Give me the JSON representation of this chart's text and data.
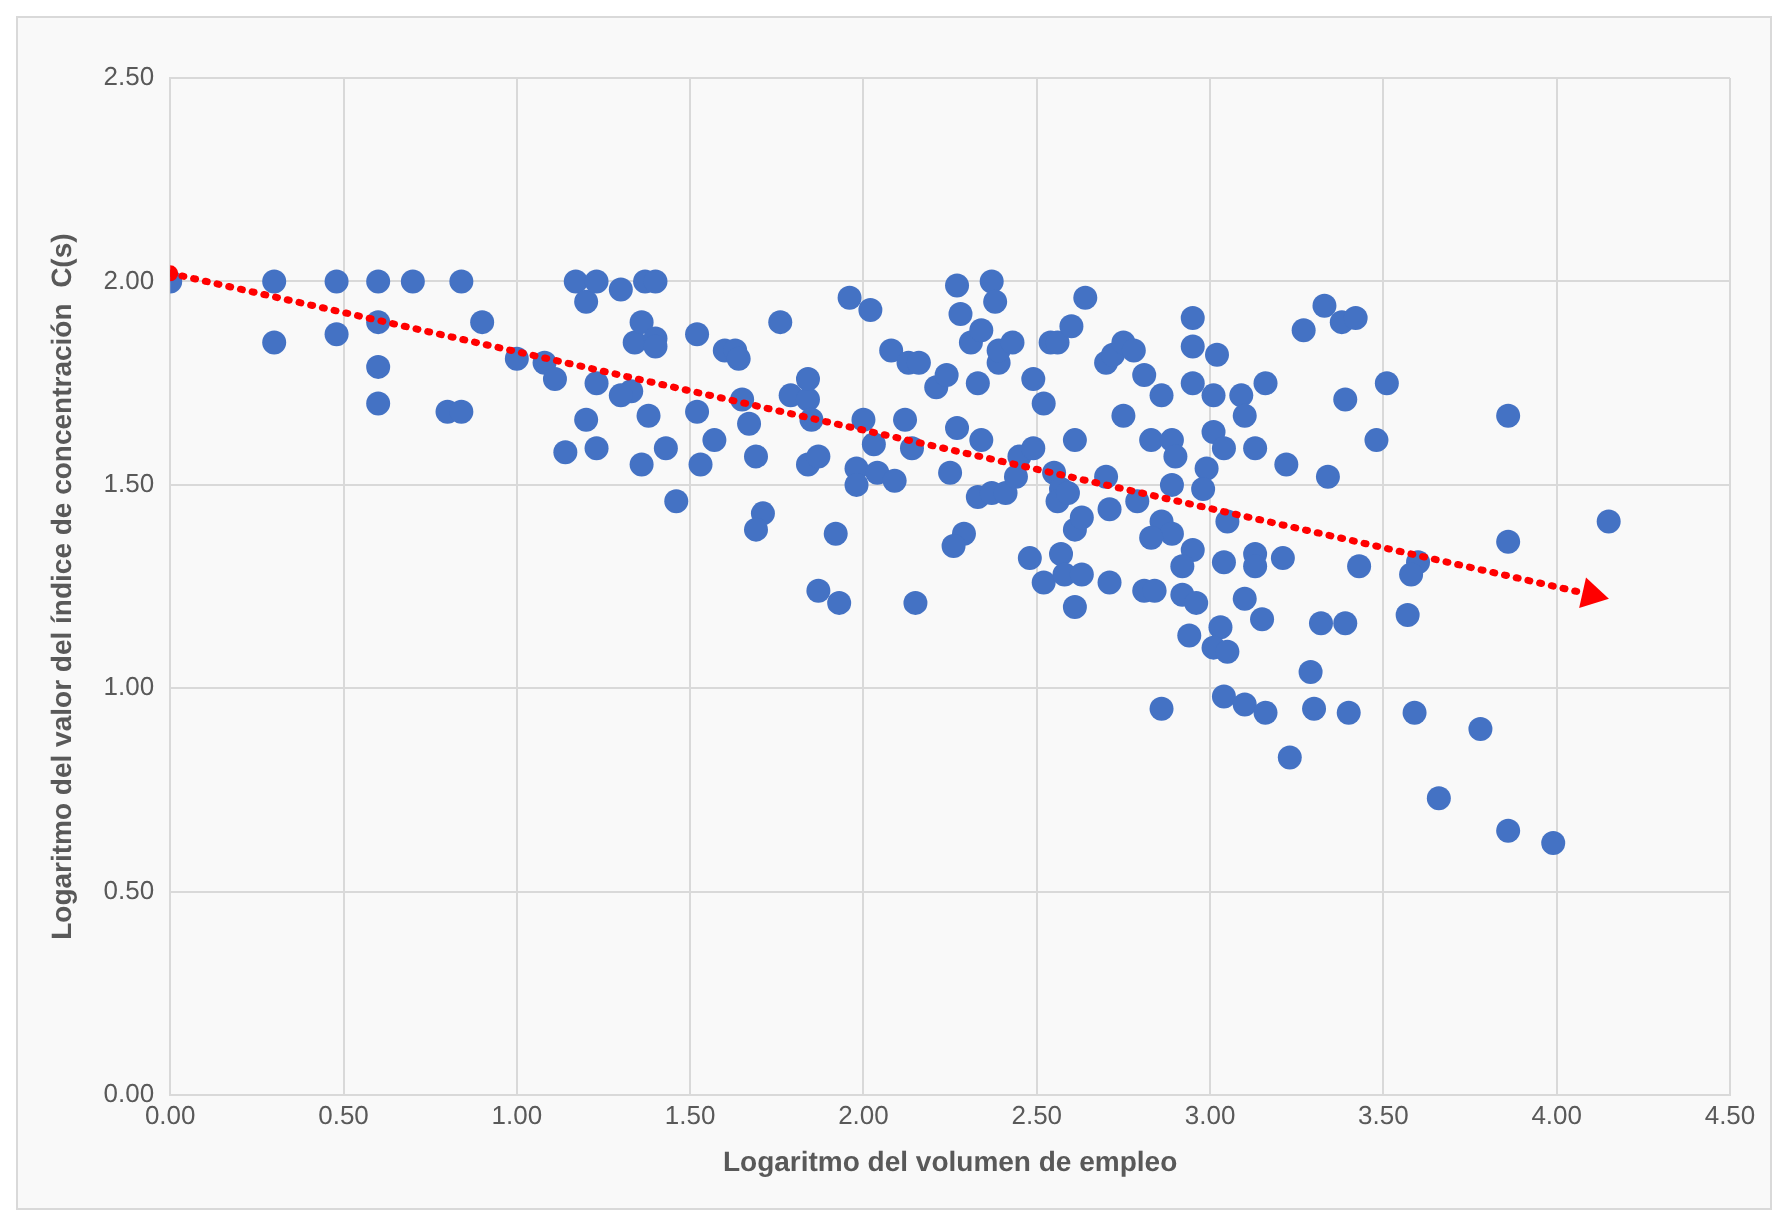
{
  "chart_data": {
    "type": "scatter",
    "xlabel": "Logaritmo del volumen de empleo",
    "ylabel": "Logaritmo del valor del índice de concentración  C(s)",
    "xlim": [
      0,
      4.5
    ],
    "xticks": [
      {
        "value": 0,
        "label": "0.00"
      },
      {
        "value": 0.5,
        "label": "0.50"
      },
      {
        "value": 1,
        "label": "1.00"
      },
      {
        "value": 1.5,
        "label": "1.50"
      },
      {
        "value": 2,
        "label": "2.00"
      },
      {
        "value": 2.5,
        "label": "2.50"
      },
      {
        "value": 3,
        "label": "3.00"
      },
      {
        "value": 3.5,
        "label": "3.50"
      },
      {
        "value": 4,
        "label": "4.00"
      },
      {
        "value": 4.5,
        "label": "4.50"
      }
    ],
    "ylim": [
      0,
      2.5
    ],
    "yticks": [
      {
        "value": 0,
        "label": "0.00"
      },
      {
        "value": 0.5,
        "label": "0.50"
      },
      {
        "value": 1,
        "label": "1.00"
      },
      {
        "value": 1.5,
        "label": "1.50"
      },
      {
        "value": 2,
        "label": "2.00"
      },
      {
        "value": 2.5,
        "label": "2.50"
      }
    ],
    "grid": true,
    "legend": false,
    "marker": "circle",
    "series": [
      {
        "color": "#4472c4",
        "x": [
          0,
          0.3,
          0.3,
          0.48,
          0.48,
          0.6,
          0.6,
          0.6,
          0.6,
          0.7,
          0.8,
          0.84,
          0.84,
          0.9,
          1.0,
          1.08,
          1.11,
          1.14,
          1.17,
          1.2,
          1.23,
          1.2,
          1.23,
          1.23,
          1.3,
          1.33,
          1.3,
          1.34,
          1.36,
          1.37,
          1.4,
          1.36,
          1.38,
          1.4,
          1.4,
          1.43,
          1.46,
          1.52,
          1.52,
          1.53,
          1.57,
          1.6,
          1.63,
          1.64,
          1.65,
          1.67,
          1.69,
          1.71,
          1.69,
          1.76,
          1.79,
          1.84,
          1.84,
          1.85,
          1.84,
          1.87,
          1.87,
          1.92,
          1.93,
          1.96,
          1.98,
          1.98,
          2.0,
          2.02,
          2.03,
          2.04,
          2.08,
          2.09,
          2.13,
          2.16,
          2.12,
          2.14,
          2.15,
          2.21,
          2.24,
          2.27,
          2.28,
          2.27,
          2.25,
          2.29,
          2.26,
          2.31,
          2.34,
          2.33,
          2.34,
          2.33,
          2.37,
          2.38,
          2.39,
          2.39,
          2.43,
          2.37,
          2.41,
          2.44,
          2.45,
          2.49,
          2.48,
          2.49,
          2.52,
          2.52,
          2.54,
          2.56,
          2.55,
          2.57,
          2.56,
          2.57,
          2.58,
          2.64,
          2.6,
          2.61,
          2.61,
          2.61,
          2.59,
          2.63,
          2.63,
          2.7,
          2.72,
          2.7,
          2.71,
          2.71,
          2.75,
          2.78,
          2.75,
          2.79,
          2.81,
          2.81,
          2.95,
          2.95,
          3.02,
          2.95,
          2.86,
          3.01,
          3.09,
          3.1,
          3.16,
          3.27,
          3.33,
          3.38,
          3.42,
          3.39,
          3.51,
          3.86,
          2.83,
          2.89,
          2.9,
          3.01,
          3.04,
          3.13,
          3.22,
          3.34,
          3.48,
          2.89,
          2.99,
          2.98,
          2.86,
          2.89,
          2.83,
          3.05,
          2.95,
          3.04,
          3.13,
          3.13,
          3.21,
          3.43,
          3.6,
          3.58,
          3.86,
          4.15,
          2.92,
          2.84,
          2.92,
          2.96,
          3.1,
          3.15,
          3.32,
          3.39,
          3.57,
          2.86,
          2.94,
          3.03,
          3.01,
          3.05,
          3.29,
          3.04,
          3.1,
          3.16,
          3.23,
          3.3,
          3.4,
          3.59,
          3.78,
          3.66,
          3.86,
          3.99
        ],
        "values": [
          2.0,
          2.0,
          1.85,
          2.0,
          1.87,
          2.0,
          1.9,
          1.79,
          1.7,
          2.0,
          1.68,
          2.0,
          1.68,
          1.9,
          1.81,
          1.8,
          1.76,
          1.58,
          2.0,
          1.95,
          2.0,
          1.66,
          1.75,
          1.59,
          1.98,
          1.73,
          1.72,
          1.85,
          1.9,
          2.0,
          2.0,
          1.55,
          1.67,
          1.86,
          1.84,
          1.59,
          1.46,
          1.87,
          1.68,
          1.55,
          1.61,
          1.83,
          1.83,
          1.81,
          1.71,
          1.65,
          1.57,
          1.43,
          1.39,
          1.9,
          1.72,
          1.71,
          1.76,
          1.66,
          1.55,
          1.57,
          1.24,
          1.38,
          1.21,
          1.96,
          1.54,
          1.5,
          1.66,
          1.93,
          1.6,
          1.53,
          1.83,
          1.51,
          1.8,
          1.8,
          1.66,
          1.59,
          1.21,
          1.74,
          1.77,
          1.99,
          1.92,
          1.64,
          1.53,
          1.38,
          1.35,
          1.85,
          1.88,
          1.75,
          1.61,
          1.47,
          2.0,
          1.95,
          1.8,
          1.83,
          1.85,
          1.48,
          1.48,
          1.52,
          1.57,
          1.76,
          1.32,
          1.59,
          1.7,
          1.26,
          1.85,
          1.85,
          1.53,
          1.49,
          1.46,
          1.33,
          1.28,
          1.96,
          1.89,
          1.61,
          1.39,
          1.2,
          1.48,
          1.42,
          1.28,
          1.8,
          1.82,
          1.52,
          1.44,
          1.26,
          1.85,
          1.83,
          1.67,
          1.46,
          1.24,
          1.77,
          1.91,
          1.84,
          1.82,
          1.75,
          1.72,
          1.72,
          1.72,
          1.67,
          1.75,
          1.88,
          1.94,
          1.9,
          1.91,
          1.71,
          1.75,
          1.67,
          1.61,
          1.61,
          1.57,
          1.63,
          1.59,
          1.59,
          1.55,
          1.52,
          1.61,
          1.5,
          1.54,
          1.49,
          1.41,
          1.38,
          1.37,
          1.41,
          1.34,
          1.31,
          1.33,
          1.3,
          1.32,
          1.3,
          1.31,
          1.28,
          1.36,
          1.41,
          1.3,
          1.24,
          1.23,
          1.21,
          1.22,
          1.17,
          1.16,
          1.16,
          1.18,
          0.95,
          1.13,
          1.15,
          1.1,
          1.09,
          1.04,
          0.98,
          0.96,
          0.94,
          0.83,
          0.95,
          0.94,
          0.94,
          0.9,
          0.73,
          0.65,
          0.62
        ]
      },
      {
        "type": "line",
        "color": "#ff0000",
        "line_style": "dotted",
        "x": [
          0,
          4.1
        ],
        "values": [
          2.02,
          1.23
        ]
      }
    ]
  }
}
